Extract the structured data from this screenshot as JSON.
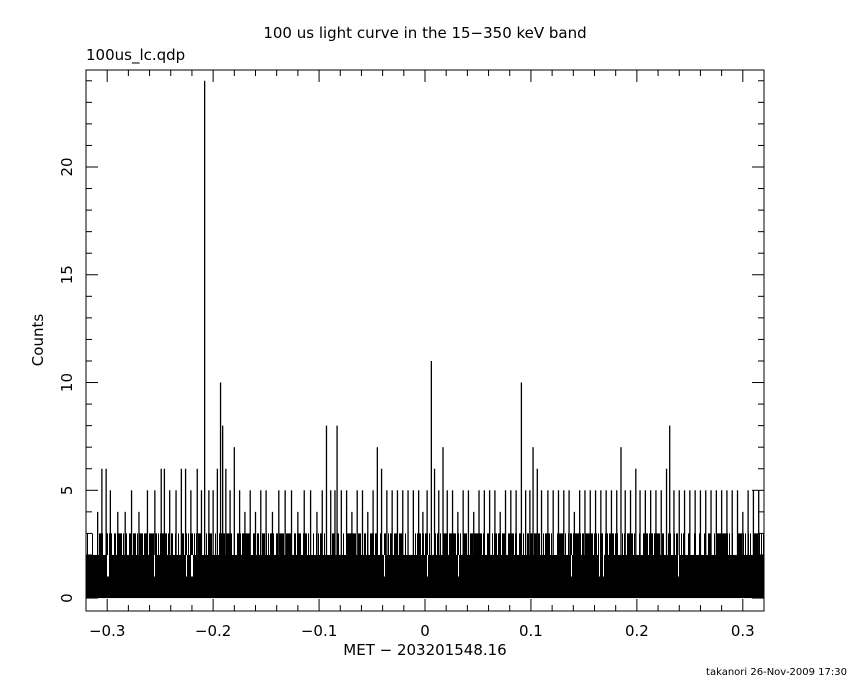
{
  "chart_data": {
    "type": "bar",
    "title": "100 us light curve in the 15−350 keV band",
    "file_label": "100us_lc.qdp",
    "xlabel": "MET − 203201548.16",
    "ylabel": "Counts",
    "footer": "takanori 26-Nov-2009 17:30",
    "xlim": [
      -0.32,
      0.32
    ],
    "ylim": [
      -0.6,
      24.5
    ],
    "x_ticks": [
      -0.3,
      -0.2,
      -0.1,
      0,
      0.1,
      0.2,
      0.3
    ],
    "x_tick_labels": [
      "−0.3",
      "−0.2",
      "−0.1",
      "0",
      "0.1",
      "0.2",
      "0.3"
    ],
    "y_ticks": [
      0,
      5,
      10,
      15,
      20
    ],
    "y_tick_labels": [
      "0",
      "5",
      "10",
      "15",
      "20"
    ],
    "bin_width": 0.0001,
    "baseline_band": [
      0,
      2
    ],
    "grid": false,
    "colors": {
      "line": "#000000",
      "background": "#ffffff"
    },
    "peaks": [
      {
        "x": -0.309,
        "y": 4
      },
      {
        "x": -0.305,
        "y": 6
      },
      {
        "x": -0.301,
        "y": 6
      },
      {
        "x": -0.297,
        "y": 5
      },
      {
        "x": -0.29,
        "y": 4
      },
      {
        "x": -0.283,
        "y": 4
      },
      {
        "x": -0.277,
        "y": 5
      },
      {
        "x": -0.27,
        "y": 4
      },
      {
        "x": -0.262,
        "y": 5
      },
      {
        "x": -0.255,
        "y": 5
      },
      {
        "x": -0.249,
        "y": 6
      },
      {
        "x": -0.246,
        "y": 6
      },
      {
        "x": -0.241,
        "y": 5
      },
      {
        "x": -0.235,
        "y": 5
      },
      {
        "x": -0.23,
        "y": 6
      },
      {
        "x": -0.226,
        "y": 6
      },
      {
        "x": -0.221,
        "y": 5
      },
      {
        "x": -0.215,
        "y": 6
      },
      {
        "x": -0.211,
        "y": 5
      },
      {
        "x": -0.208,
        "y": 24
      },
      {
        "x": -0.204,
        "y": 5
      },
      {
        "x": -0.2,
        "y": 5
      },
      {
        "x": -0.196,
        "y": 6
      },
      {
        "x": -0.193,
        "y": 10
      },
      {
        "x": -0.191,
        "y": 8
      },
      {
        "x": -0.188,
        "y": 6
      },
      {
        "x": -0.184,
        "y": 5
      },
      {
        "x": -0.18,
        "y": 7
      },
      {
        "x": -0.175,
        "y": 5
      },
      {
        "x": -0.17,
        "y": 4
      },
      {
        "x": -0.165,
        "y": 5
      },
      {
        "x": -0.16,
        "y": 4
      },
      {
        "x": -0.155,
        "y": 5
      },
      {
        "x": -0.15,
        "y": 5
      },
      {
        "x": -0.144,
        "y": 4
      },
      {
        "x": -0.138,
        "y": 5
      },
      {
        "x": -0.132,
        "y": 5
      },
      {
        "x": -0.126,
        "y": 5
      },
      {
        "x": -0.12,
        "y": 4
      },
      {
        "x": -0.114,
        "y": 5
      },
      {
        "x": -0.108,
        "y": 5
      },
      {
        "x": -0.102,
        "y": 4
      },
      {
        "x": -0.097,
        "y": 5
      },
      {
        "x": -0.093,
        "y": 8
      },
      {
        "x": -0.089,
        "y": 5
      },
      {
        "x": -0.085,
        "y": 5
      },
      {
        "x": -0.083,
        "y": 8
      },
      {
        "x": -0.079,
        "y": 5
      },
      {
        "x": -0.074,
        "y": 5
      },
      {
        "x": -0.069,
        "y": 4
      },
      {
        "x": -0.064,
        "y": 5
      },
      {
        "x": -0.059,
        "y": 5
      },
      {
        "x": -0.054,
        "y": 4
      },
      {
        "x": -0.049,
        "y": 5
      },
      {
        "x": -0.045,
        "y": 7
      },
      {
        "x": -0.041,
        "y": 6
      },
      {
        "x": -0.036,
        "y": 5
      },
      {
        "x": -0.031,
        "y": 5
      },
      {
        "x": -0.026,
        "y": 5
      },
      {
        "x": -0.021,
        "y": 5
      },
      {
        "x": -0.016,
        "y": 5
      },
      {
        "x": -0.011,
        "y": 5
      },
      {
        "x": -0.006,
        "y": 5
      },
      {
        "x": -0.002,
        "y": 4
      },
      {
        "x": 0.002,
        "y": 5
      },
      {
        "x": 0.006,
        "y": 11
      },
      {
        "x": 0.009,
        "y": 6
      },
      {
        "x": 0.013,
        "y": 5
      },
      {
        "x": 0.017,
        "y": 7
      },
      {
        "x": 0.021,
        "y": 5
      },
      {
        "x": 0.026,
        "y": 5
      },
      {
        "x": 0.031,
        "y": 4
      },
      {
        "x": 0.036,
        "y": 5
      },
      {
        "x": 0.041,
        "y": 5
      },
      {
        "x": 0.046,
        "y": 4
      },
      {
        "x": 0.051,
        "y": 5
      },
      {
        "x": 0.056,
        "y": 5
      },
      {
        "x": 0.061,
        "y": 5
      },
      {
        "x": 0.066,
        "y": 5
      },
      {
        "x": 0.071,
        "y": 4
      },
      {
        "x": 0.076,
        "y": 5
      },
      {
        "x": 0.081,
        "y": 5
      },
      {
        "x": 0.086,
        "y": 5
      },
      {
        "x": 0.091,
        "y": 10
      },
      {
        "x": 0.095,
        "y": 5
      },
      {
        "x": 0.099,
        "y": 5
      },
      {
        "x": 0.102,
        "y": 7
      },
      {
        "x": 0.106,
        "y": 6
      },
      {
        "x": 0.11,
        "y": 5
      },
      {
        "x": 0.116,
        "y": 5
      },
      {
        "x": 0.121,
        "y": 5
      },
      {
        "x": 0.126,
        "y": 5
      },
      {
        "x": 0.131,
        "y": 5
      },
      {
        "x": 0.136,
        "y": 5
      },
      {
        "x": 0.141,
        "y": 4
      },
      {
        "x": 0.146,
        "y": 5
      },
      {
        "x": 0.151,
        "y": 5
      },
      {
        "x": 0.156,
        "y": 5
      },
      {
        "x": 0.161,
        "y": 5
      },
      {
        "x": 0.166,
        "y": 5
      },
      {
        "x": 0.171,
        "y": 5
      },
      {
        "x": 0.176,
        "y": 5
      },
      {
        "x": 0.181,
        "y": 5
      },
      {
        "x": 0.185,
        "y": 7
      },
      {
        "x": 0.189,
        "y": 5
      },
      {
        "x": 0.194,
        "y": 5
      },
      {
        "x": 0.199,
        "y": 6
      },
      {
        "x": 0.203,
        "y": 5
      },
      {
        "x": 0.208,
        "y": 5
      },
      {
        "x": 0.213,
        "y": 5
      },
      {
        "x": 0.218,
        "y": 5
      },
      {
        "x": 0.223,
        "y": 5
      },
      {
        "x": 0.228,
        "y": 6
      },
      {
        "x": 0.231,
        "y": 8
      },
      {
        "x": 0.235,
        "y": 5
      },
      {
        "x": 0.24,
        "y": 5
      },
      {
        "x": 0.245,
        "y": 5
      },
      {
        "x": 0.25,
        "y": 5
      },
      {
        "x": 0.255,
        "y": 5
      },
      {
        "x": 0.26,
        "y": 5
      },
      {
        "x": 0.265,
        "y": 5
      },
      {
        "x": 0.27,
        "y": 5
      },
      {
        "x": 0.275,
        "y": 5
      },
      {
        "x": 0.28,
        "y": 5
      },
      {
        "x": 0.285,
        "y": 5
      },
      {
        "x": 0.29,
        "y": 5
      },
      {
        "x": 0.295,
        "y": 5
      },
      {
        "x": 0.3,
        "y": 4
      },
      {
        "x": 0.305,
        "y": 5
      },
      {
        "x": 0.31,
        "y": 5
      },
      {
        "x": 0.315,
        "y": 5
      }
    ]
  }
}
